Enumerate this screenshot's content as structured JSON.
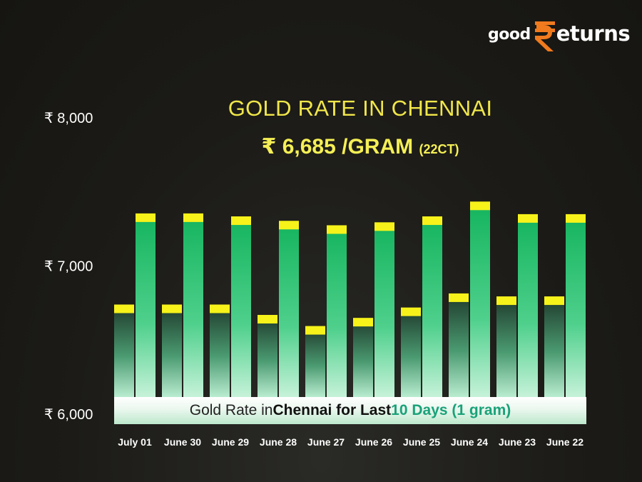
{
  "brand": {
    "logo_part1": "good",
    "logo_symbol": "₹",
    "logo_part2": "eturns",
    "accent_color": "#f07a1e"
  },
  "header": {
    "title": "GOLD RATE IN CHENNAI",
    "price": "₹ 6,685 /GRAM",
    "purity": "(22CT)"
  },
  "banner": {
    "part1": "Gold Rate in ",
    "part2": "Chennai for Last ",
    "part3": "10 Days (1 gram)"
  },
  "chart_data": {
    "type": "bar",
    "ylim": [
      6000,
      8000
    ],
    "yticks": [
      6000,
      7000,
      8000
    ],
    "ytick_labels": [
      "₹ 6,000",
      "₹ 7,000",
      "₹ 8,000"
    ],
    "categories": [
      "July 01",
      "June 30",
      "June 29",
      "June 28",
      "June 27",
      "June 26",
      "June 25",
      "June 24",
      "June 23",
      "June 22"
    ],
    "series": [
      {
        "values": [
          6735,
          6735,
          6735,
          6665,
          6590,
          6645,
          6715,
          6810,
          6790,
          6790
        ],
        "color": "#2e6b4a",
        "cap_color": "#f6f21a"
      },
      {
        "values": [
          7350,
          7350,
          7330,
          7300,
          7270,
          7290,
          7330,
          7430,
          7345,
          7345
        ],
        "color": "#1db96a",
        "cap_color": "#f6f21a"
      }
    ],
    "grid": false,
    "legend": "none"
  }
}
